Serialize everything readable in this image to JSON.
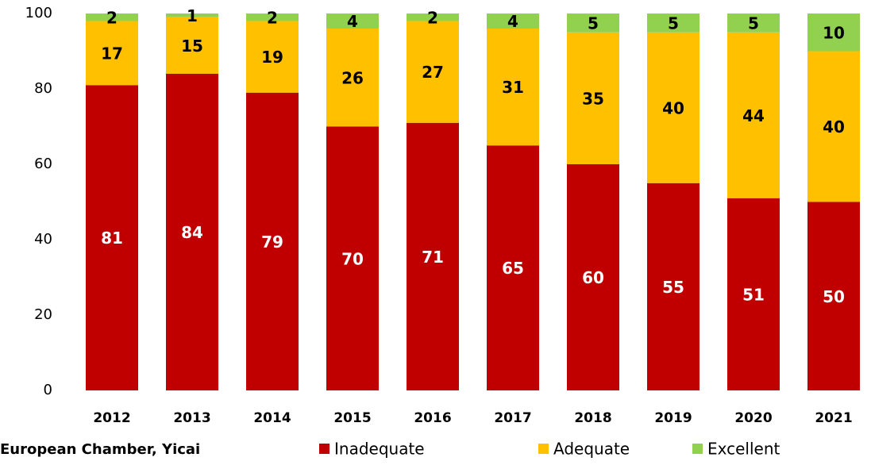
{
  "chart_data": {
    "type": "stacked_bar",
    "categories": [
      "2012",
      "2013",
      "2014",
      "2015",
      "2016",
      "2017",
      "2018",
      "2019",
      "2020",
      "2021"
    ],
    "series": [
      {
        "name": "Inadequate",
        "color": "#c00000",
        "values": [
          81,
          84,
          79,
          70,
          71,
          65,
          60,
          55,
          51,
          50
        ]
      },
      {
        "name": "Adequate",
        "color": "#ffc000",
        "values": [
          17,
          15,
          19,
          26,
          27,
          31,
          35,
          40,
          44,
          40
        ]
      },
      {
        "name": "Excellent",
        "color": "#92d050",
        "values": [
          2,
          1,
          2,
          4,
          2,
          4,
          5,
          5,
          5,
          10
        ]
      }
    ],
    "ylim": [
      0,
      100
    ],
    "yticks": [
      0,
      20,
      40,
      60,
      80,
      100
    ],
    "grid": false,
    "source": "European Chamber, Yicai"
  }
}
